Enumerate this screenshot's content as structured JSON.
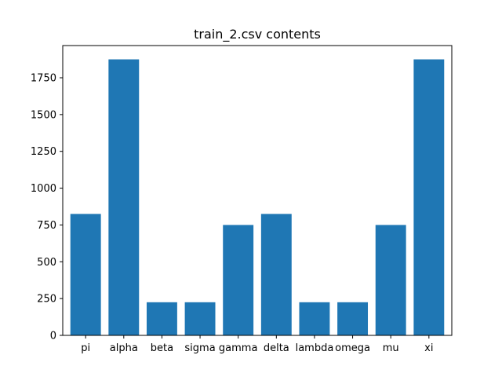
{
  "chart_data": {
    "type": "bar",
    "title": "train_2.csv contents",
    "xlabel": "",
    "ylabel": "",
    "categories": [
      "pi",
      "alpha",
      "beta",
      "sigma",
      "gamma",
      "delta",
      "lambda",
      "omega",
      "mu",
      "xi"
    ],
    "values": [
      825,
      1875,
      225,
      225,
      750,
      825,
      225,
      225,
      750,
      1875
    ],
    "ylim": [
      0,
      1968.75
    ],
    "yticks": [
      0,
      250,
      500,
      750,
      1000,
      1250,
      1500,
      1750
    ],
    "ytick_labels": [
      "0",
      "250",
      "500",
      "750",
      "1000",
      "1250",
      "1500",
      "1750"
    ],
    "bar_color": "#1f77b4",
    "grid": false,
    "legend": "none"
  }
}
